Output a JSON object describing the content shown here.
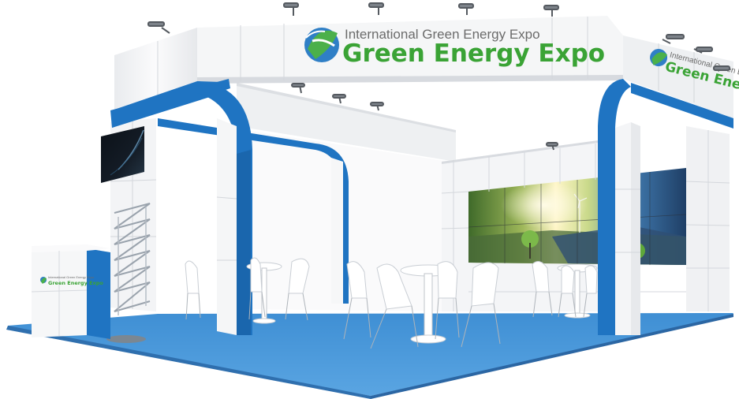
{
  "booth": {
    "header_logo": {
      "line1": "International Green Energy Expo",
      "line2": "Green Energy Expo"
    },
    "side_logo": {
      "line1": "International Green Energy Expo",
      "line2": "Green Energy Expo"
    },
    "counter_logo": {
      "line1": "International Green Energy Expo",
      "line2": "Green Energy Expo"
    }
  },
  "colors": {
    "booth_blue": "#1f74c2",
    "carpet_blue": "#4c98d8",
    "panel_white": "#f2f3f5",
    "logo_green": "#3aa335"
  },
  "icons": [
    "globe-leaf-logo-icon",
    "spotlight-icon"
  ]
}
